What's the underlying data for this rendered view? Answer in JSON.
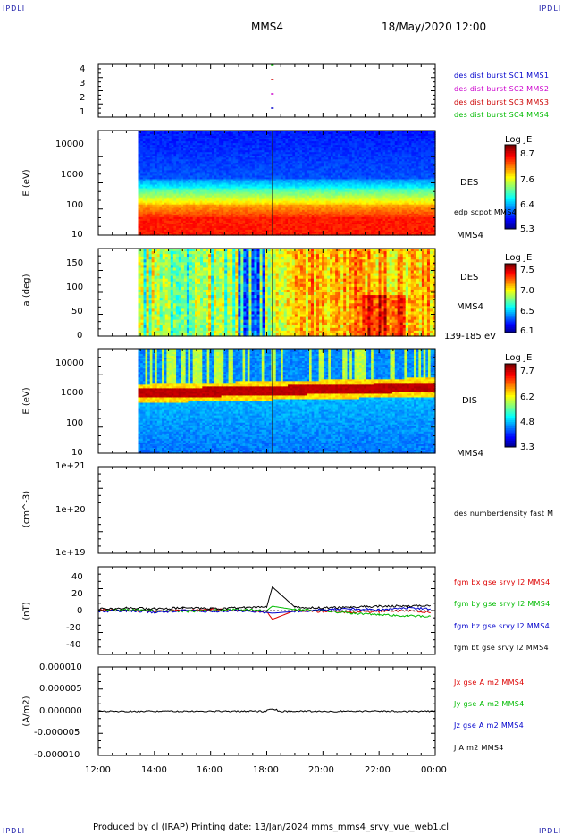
{
  "header": {
    "corner_tl": "IPDLI",
    "corner_tr": "IPDLI",
    "corner_bl": "IPDLI",
    "corner_br": "IPDLI",
    "spacecraft": "MMS4",
    "datetime": "18/May/2020 12:00"
  },
  "footer": {
    "text": "Produced by cl (IRAP)   Printing date: 13/Jan/2024   mms_mms4_srvy_vue_web1.cl"
  },
  "colors": {
    "mms1": "#0000cc",
    "mms2": "#cc00cc",
    "mms3": "#cc0000",
    "mms4": "#00bb00",
    "bx": "#dd0000",
    "by": "#00bb00",
    "bz": "#0000cc",
    "bt": "#000000",
    "jx": "#dd0000",
    "jy": "#00bb00",
    "jz": "#0000cc",
    "j": "#000000"
  },
  "chart_data": [
    {
      "type": "scatter",
      "panel": "burst-availability",
      "yticks": [
        "4",
        "3",
        "2",
        "1"
      ],
      "series": [
        {
          "name": "des dist burst SC1 MMS1",
          "x": [
            "18:12"
          ],
          "y": [
            1
          ]
        },
        {
          "name": "des dist burst SC2 MMS2",
          "x": [
            "18:12"
          ],
          "y": [
            2
          ]
        },
        {
          "name": "des dist burst SC3 MMS3",
          "x": [
            "18:12"
          ],
          "y": [
            3
          ]
        },
        {
          "name": "des dist burst SC4 MMS4",
          "x": [
            "18:12"
          ],
          "y": [
            4
          ]
        }
      ]
    },
    {
      "type": "heatmap",
      "panel": "des-energy-spectrogram",
      "ylabel": "E (eV)",
      "yscale": "log",
      "ylim": [
        10,
        20000
      ],
      "yticks": [
        "10000",
        "1000",
        "100",
        "10"
      ],
      "data_start": "13:25",
      "label": "DES",
      "overlay_label": "edp scpot MMS4",
      "bottom_label": "MMS4",
      "colorbar": {
        "title": "Log JE",
        "ticks": [
          "8.7",
          "7.6",
          "6.4",
          "5.3"
        ]
      }
    },
    {
      "type": "heatmap",
      "panel": "des-pitch-angle",
      "ylabel": "a (deg)",
      "ylim": [
        0,
        180
      ],
      "yticks": [
        "150",
        "100",
        "50",
        "0"
      ],
      "data_start": "13:25",
      "label": "DES",
      "label2": "MMS4",
      "energy_range": "139-185 eV",
      "colorbar": {
        "title": "Log JE",
        "ticks": [
          "7.5",
          "7.0",
          "6.5",
          "6.1"
        ]
      }
    },
    {
      "type": "heatmap",
      "panel": "dis-energy-spectrogram",
      "ylabel": "E (eV)",
      "yscale": "log",
      "ylim": [
        10,
        20000
      ],
      "yticks": [
        "10000",
        "1000",
        "100",
        "10"
      ],
      "data_start": "13:25",
      "label": "DIS",
      "bottom_label": "MMS4",
      "colorbar": {
        "title": "Log JE",
        "ticks": [
          "7.7",
          "6.2",
          "4.8",
          "3.3"
        ]
      }
    },
    {
      "type": "line",
      "panel": "number-density",
      "ylabel": "(cm^-3)",
      "yscale": "log",
      "yticks": [
        "1e+21",
        "1e+20",
        "1e+19"
      ],
      "series": [
        {
          "name": "des numberdensity fast M",
          "x": [],
          "y": []
        }
      ]
    },
    {
      "type": "line",
      "panel": "magnetic-field",
      "ylabel": "(nT)",
      "ylim": [
        -50,
        50
      ],
      "yticks": [
        "40",
        "20",
        "0",
        "-20",
        "-40"
      ],
      "series": [
        {
          "name": "fgm bx gse srvy l2 MMS4",
          "x": [
            "12:00",
            "13:00",
            "14:00",
            "15:00",
            "16:00",
            "17:00",
            "18:00",
            "18:12",
            "19:00",
            "20:00",
            "21:00",
            "22:00",
            "23:00",
            "23:50"
          ],
          "y": [
            1,
            0,
            -1,
            0,
            1,
            0,
            -1,
            -10,
            0,
            -1,
            -2,
            -1,
            0,
            -2
          ]
        },
        {
          "name": "fgm by gse srvy l2 MMS4",
          "x": [
            "12:00",
            "13:00",
            "14:00",
            "15:00",
            "16:00",
            "17:00",
            "18:00",
            "18:12",
            "19:00",
            "20:00",
            "21:00",
            "22:00",
            "23:00",
            "23:50"
          ],
          "y": [
            0,
            1,
            0,
            -1,
            0,
            1,
            0,
            5,
            1,
            0,
            -3,
            -5,
            -6,
            -7
          ]
        },
        {
          "name": "fgm bz gse srvy l2 MMS4",
          "x": [
            "12:00",
            "13:00",
            "14:00",
            "15:00",
            "16:00",
            "17:00",
            "18:00",
            "18:12",
            "19:00",
            "20:00",
            "21:00",
            "22:00",
            "23:00",
            "23:50"
          ],
          "y": [
            -1,
            0,
            -2,
            0,
            -1,
            0,
            -2,
            -3,
            -1,
            1,
            2,
            1,
            3,
            2
          ]
        },
        {
          "name": "fgm bt gse srvy l2 MMS4",
          "x": [
            "12:00",
            "13:00",
            "14:00",
            "15:00",
            "16:00",
            "17:00",
            "18:00",
            "18:12",
            "19:00",
            "20:00",
            "21:00",
            "22:00",
            "23:00",
            "23:50"
          ],
          "y": [
            2,
            3,
            2,
            3,
            2,
            3,
            4,
            27,
            4,
            3,
            4,
            5,
            5,
            6
          ]
        }
      ]
    },
    {
      "type": "line",
      "panel": "current-density",
      "ylabel": "(A/m2)",
      "ylim": [
        -1e-05,
        1e-05
      ],
      "yticks": [
        "0.000010",
        "0.000005",
        "0.000000",
        "-0.000005",
        "-0.000010"
      ],
      "xticks": [
        "12:00",
        "14:00",
        "16:00",
        "18:00",
        "20:00",
        "22:00",
        "00:00"
      ],
      "series": [
        {
          "name": "Jx gse A m2 MMS4",
          "x": [
            "12:00",
            "18:12",
            "00:00"
          ],
          "y": [
            0,
            0,
            0
          ]
        },
        {
          "name": "Jy gse A m2 MMS4",
          "x": [
            "12:00",
            "18:12",
            "00:00"
          ],
          "y": [
            0,
            0,
            0
          ]
        },
        {
          "name": "Jz gse A m2 MMS4",
          "x": [
            "12:00",
            "18:12",
            "00:00"
          ],
          "y": [
            0,
            0,
            0
          ]
        },
        {
          "name": "J A m2 MMS4",
          "x": [
            "12:00",
            "18:12",
            "00:00"
          ],
          "y": [
            0,
            4e-07,
            0
          ]
        }
      ]
    }
  ]
}
